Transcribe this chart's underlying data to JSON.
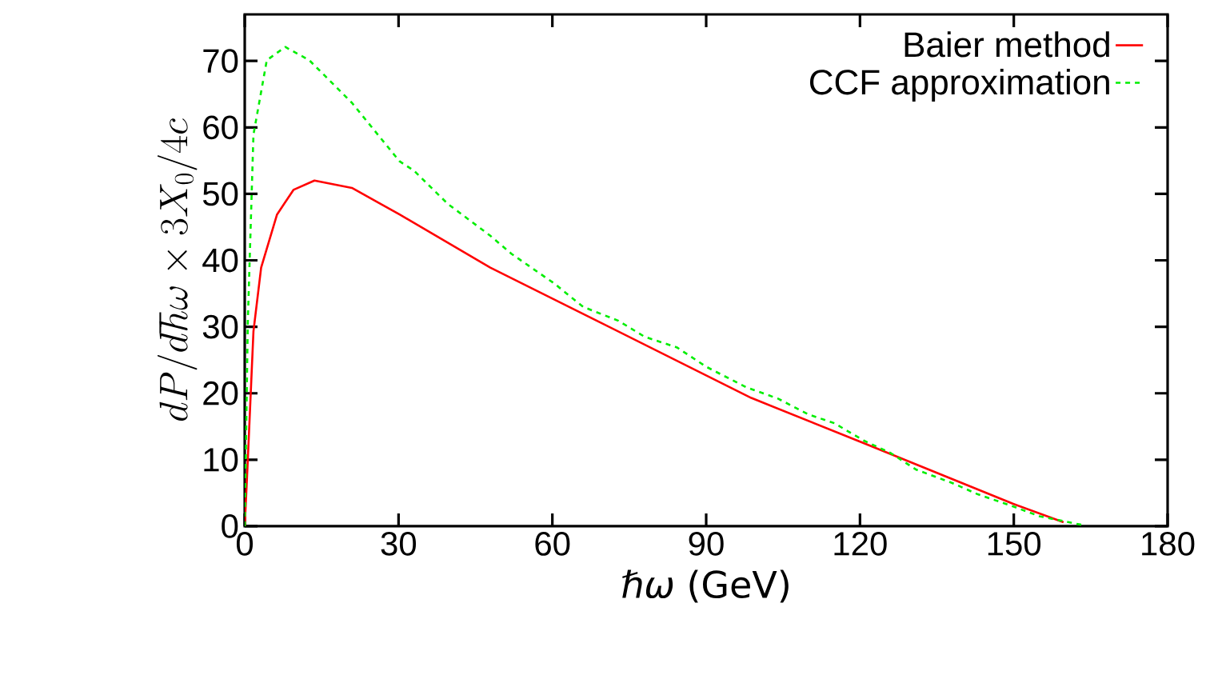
{
  "chart_data": {
    "type": "line",
    "xlabel": "*ℏω* (GeV)",
    "ylabel": "dP/d\\hbar\\omega \\times 3X_0/4c",
    "xlim": [
      0,
      180
    ],
    "ylim": [
      0,
      77
    ],
    "xticks": [
      0,
      30,
      60,
      90,
      120,
      150,
      180
    ],
    "yticks": [
      0,
      10,
      20,
      30,
      40,
      50,
      60,
      70
    ],
    "legend": "top right",
    "grid": false,
    "series": [
      {
        "name": "Baier method",
        "color": "#ff0000",
        "line_style": "solid",
        "x": [
          0,
          0.6,
          1.7,
          3.2,
          6.3,
          9.5,
          13.6,
          20.9,
          30.2,
          47.9,
          68.7,
          98.8,
          120.7,
          149.8,
          159.7
        ],
        "values": [
          0,
          10,
          29.3,
          38.9,
          46.9,
          50.6,
          52.0,
          50.9,
          46.9,
          38.9,
          30.9,
          19.3,
          12.5,
          3.4,
          0.6
        ]
      },
      {
        "name": "CCF approximation",
        "color": "#00ee00",
        "line_style": "dashed",
        "x": [
          0,
          0.6,
          1.7,
          4.3,
          7.9,
          12.6,
          20.9,
          30.2,
          33,
          39.6,
          47.9,
          52,
          60.4,
          66,
          72.9,
          78,
          84.3,
          90,
          97.8,
          104,
          110,
          115,
          120.7,
          126,
          131,
          138,
          143,
          149.8,
          155,
          163.3
        ],
        "values": [
          0,
          30.8,
          58.9,
          70.1,
          72.1,
          70.1,
          63.7,
          54.9,
          53.5,
          48.5,
          43.7,
          41.0,
          36.5,
          33.0,
          30.9,
          28.5,
          26.9,
          24.0,
          20.9,
          19.2,
          16.8,
          15.5,
          12.9,
          11.0,
          8.5,
          6.5,
          4.8,
          3.0,
          1.5,
          0.2
        ]
      }
    ]
  }
}
